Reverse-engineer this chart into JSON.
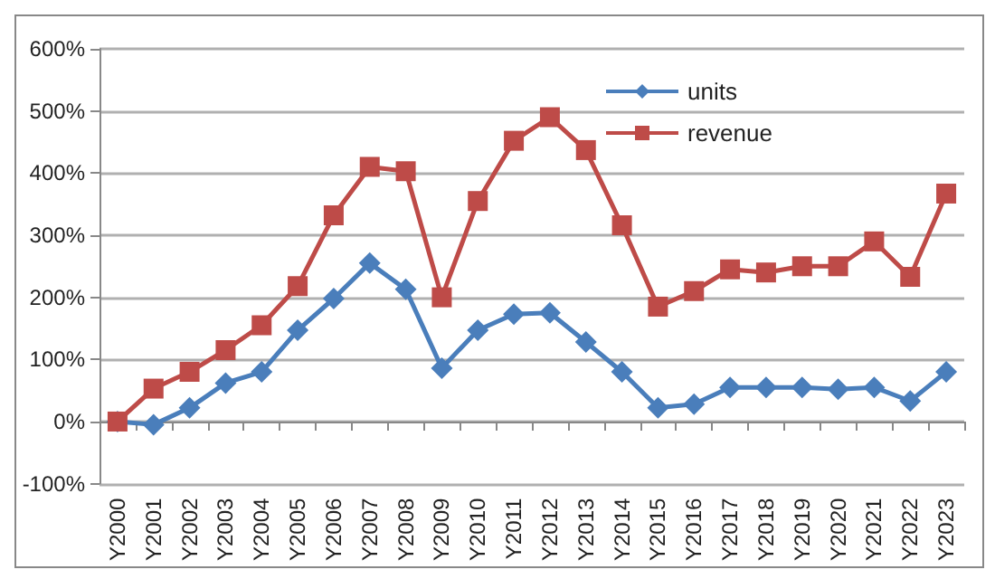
{
  "chart_data": {
    "type": "line",
    "categories": [
      "Y2000",
      "Y2001",
      "Y2002",
      "Y2003",
      "Y2004",
      "Y2005",
      "Y2006",
      "Y2007",
      "Y2008",
      "Y2009",
      "Y2010",
      "Y2011",
      "Y2012",
      "Y2013",
      "Y2014",
      "Y2015",
      "Y2016",
      "Y2017",
      "Y2018",
      "Y2019",
      "Y2020",
      "Y2021",
      "Y2022",
      "Y2023"
    ],
    "series": [
      {
        "name": "units",
        "color": "#4a7ebb",
        "marker": "diamond",
        "values": [
          0,
          -5,
          22,
          62,
          80,
          147,
          198,
          255,
          213,
          86,
          147,
          173,
          175,
          128,
          80,
          22,
          28,
          55,
          55,
          55,
          52,
          55,
          33,
          80
        ]
      },
      {
        "name": "revenue",
        "color": "#be4b48",
        "marker": "square",
        "values": [
          0,
          53,
          80,
          115,
          155,
          218,
          332,
          410,
          403,
          200,
          355,
          452,
          490,
          437,
          316,
          185,
          210,
          245,
          240,
          250,
          250,
          290,
          233,
          367
        ]
      }
    ],
    "ylim": [
      -100,
      600
    ],
    "yticks": [
      {
        "value": -100,
        "label": "-100%"
      },
      {
        "value": 0,
        "label": "0%"
      },
      {
        "value": 100,
        "label": "100%"
      },
      {
        "value": 200,
        "label": "200%"
      },
      {
        "value": 300,
        "label": "300%"
      },
      {
        "value": 400,
        "label": "400%"
      },
      {
        "value": 500,
        "label": "500%"
      },
      {
        "value": 600,
        "label": "600%"
      }
    ],
    "grid": "y",
    "legend": "top",
    "line_style": "solid"
  }
}
